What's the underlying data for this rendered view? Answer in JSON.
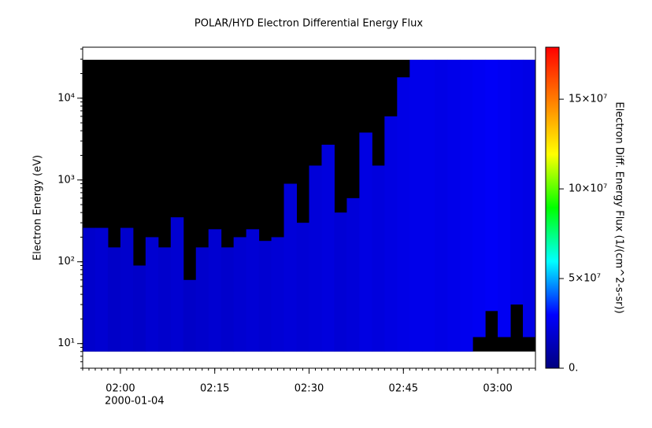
{
  "chart_data": {
    "type": "spectrogram",
    "title": "POLAR/HYD  Electron Differential Energy Flux",
    "y_label": "Electron Energy (eV)",
    "x_date_label": "2000-01-04",
    "log_y": true,
    "xlim": [
      "01:54",
      "03:06"
    ],
    "xticks": [
      "02:00",
      "02:15",
      "02:30",
      "02:45",
      "03:00"
    ],
    "ylim": [
      5,
      42000
    ],
    "yticks": [
      {
        "value": 10,
        "label": "10¹"
      },
      {
        "value": 100,
        "label": "10²"
      },
      {
        "value": 1000,
        "label": "10³"
      },
      {
        "value": 10000,
        "label": "10⁴"
      }
    ],
    "energy_range": [
      8,
      29500
    ],
    "fill_color": "#000000",
    "x": [
      "01:55",
      "01:57",
      "01:59",
      "02:01",
      "02:03",
      "02:05",
      "02:07",
      "02:09",
      "02:11",
      "02:13",
      "02:15",
      "02:17",
      "02:19",
      "02:21",
      "02:23",
      "02:25",
      "02:27",
      "02:29",
      "02:31",
      "02:33",
      "02:35",
      "02:37",
      "02:39",
      "02:41",
      "02:43",
      "02:45",
      "02:47",
      "02:49",
      "02:51",
      "02:53",
      "02:55",
      "02:57",
      "02:59",
      "03:01",
      "03:03",
      "03:05"
    ],
    "top": [
      260,
      260,
      150,
      260,
      90,
      200,
      150,
      350,
      60,
      150,
      250,
      150,
      200,
      250,
      180,
      200,
      900,
      300,
      1500,
      2700,
      400,
      600,
      3800,
      1500,
      6000,
      18000,
      29500,
      29500,
      29500,
      29500,
      29500,
      29500,
      29500,
      29500,
      29500,
      29500
    ],
    "bottom": [
      8,
      8,
      8,
      8,
      8,
      8,
      8,
      8,
      8,
      8,
      8,
      8,
      8,
      8,
      8,
      8,
      8,
      8,
      8,
      8,
      8,
      8,
      8,
      8,
      8,
      8,
      8,
      8,
      8,
      8,
      8,
      12,
      25,
      12,
      30,
      12
    ],
    "flux": [
      18000000,
      19000000,
      17000000,
      18000000,
      17000000,
      19000000,
      18000000,
      19000000,
      17000000,
      18000000,
      19000000,
      18000000,
      19000000,
      20000000,
      19000000,
      20000000,
      21000000,
      20000000,
      21000000,
      22000000,
      20000000,
      21000000,
      23000000,
      22000000,
      23000000,
      24000000,
      25000000,
      25000000,
      24000000,
      25000000,
      26000000,
      27000000,
      28000000,
      27000000,
      25000000,
      24000000
    ],
    "colorbar_label": "Electron Diff. Energy Flux (1/(cm^2-s-sr))",
    "clim": [
      0,
      179000000
    ],
    "cticks": [
      {
        "value": 0,
        "label": "0."
      },
      {
        "value": 50000000,
        "label": "5×10⁷"
      },
      {
        "value": 100000000,
        "label": "10×10⁷"
      },
      {
        "value": 150000000,
        "label": "15×10⁷"
      }
    ],
    "colormap": [
      "#00007f",
      "#0000ff",
      "#00ffff",
      "#00ff00",
      "#ffff00",
      "#ff7f00",
      "#ff0000"
    ]
  }
}
